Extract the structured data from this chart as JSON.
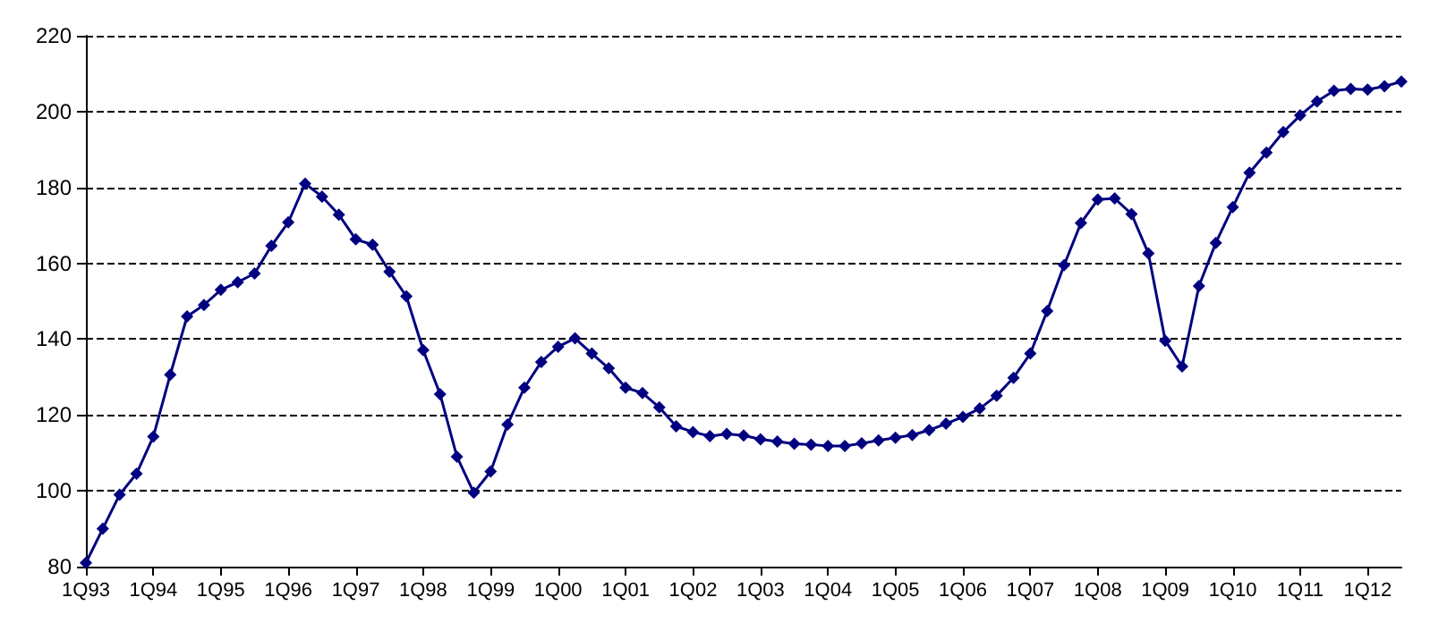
{
  "chart_data": {
    "type": "line",
    "categories": [
      "1Q93",
      null,
      null,
      null,
      "1Q94",
      null,
      null,
      null,
      "1Q95",
      null,
      null,
      null,
      "1Q96",
      null,
      null,
      null,
      "1Q97",
      null,
      null,
      null,
      "1Q98",
      null,
      null,
      null,
      "1Q99",
      null,
      null,
      null,
      "1Q00",
      null,
      null,
      null,
      "1Q01",
      null,
      null,
      null,
      "1Q02",
      null,
      null,
      null,
      "1Q03",
      null,
      null,
      null,
      "1Q04",
      null,
      null,
      null,
      "1Q05",
      null,
      null,
      null,
      "1Q06",
      null,
      null,
      null,
      "1Q07",
      null,
      null,
      null,
      "1Q08",
      null,
      null,
      null,
      "1Q09",
      null,
      null,
      null,
      "1Q10",
      null,
      null,
      null,
      "1Q11",
      null,
      null,
      null,
      "1Q12",
      null,
      null
    ],
    "series": [
      {
        "color": "#000080",
        "values": [
          81,
          90,
          99,
          104.5,
          114.3,
          130.6,
          146,
          149,
          153,
          155,
          157.3,
          164.6,
          170.8,
          181,
          177.6,
          172.8,
          166.3,
          164.9,
          157.8,
          151.3,
          137.1,
          125.5,
          109,
          99.5,
          105.1,
          117.5,
          127.2,
          134,
          138,
          140.2,
          136.2,
          132.3,
          127.2,
          125.8,
          122,
          117,
          115.5,
          114.4,
          115,
          114.6,
          113.6,
          113,
          112.4,
          112.2,
          111.8,
          111.8,
          112.5,
          113.3,
          114,
          114.7,
          116,
          117.7,
          119.5,
          121.7,
          125.1,
          129.8,
          136.2,
          147.4,
          159.5,
          170.6,
          176.8,
          177.1,
          173,
          162.6,
          139.6,
          132.8,
          154,
          165.4,
          174.8,
          183.9,
          189.2,
          194.6,
          199,
          202.7,
          205.5,
          206,
          205.8,
          206.7,
          207.9
        ]
      }
    ],
    "ylim": [
      80,
      220
    ],
    "yticks": [
      80,
      100,
      120,
      140,
      160,
      180,
      200,
      220
    ],
    "grid": "y",
    "marker": "diamond",
    "line_style": "solid"
  }
}
